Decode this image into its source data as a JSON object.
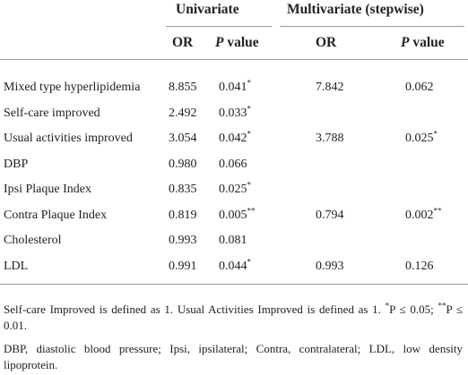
{
  "table": {
    "groups": [
      "Univariate",
      "Multivariate (stepwise)"
    ],
    "columns": [
      {
        "text": "OR"
      },
      {
        "italic": "P",
        "text": " value"
      },
      {
        "text": "OR"
      },
      {
        "italic": "P",
        "text": " value"
      }
    ],
    "rows": [
      [
        "Mixed type hyperlipidemia",
        "8.855",
        {
          "text": "0.041",
          "sup": "*"
        },
        "7.842",
        "0.062"
      ],
      [
        "Self-care improved",
        "2.492",
        {
          "text": "0.033",
          "sup": "*"
        },
        null,
        null
      ],
      [
        "Usual activities improved",
        "3.054",
        {
          "text": "0.042",
          "sup": "*"
        },
        "3.788",
        {
          "text": "0.025",
          "sup": "*"
        }
      ],
      [
        "DBP",
        "0.980",
        "0.066",
        null,
        null
      ],
      [
        "Ipsi Plaque Index",
        "0.835",
        {
          "text": "0.025",
          "sup": "*"
        },
        null,
        null
      ],
      [
        "Contra Plaque Index",
        "0.819",
        {
          "text": "0.005",
          "sup": "**"
        },
        "0.794",
        {
          "text": "0.002",
          "sup": "**"
        }
      ],
      [
        "Cholesterol",
        "0.993",
        "0.081",
        null,
        null
      ],
      [
        "LDL",
        "0.991",
        {
          "text": "0.044",
          "sup": "*"
        },
        "0.993",
        "0.126"
      ]
    ]
  },
  "footnotes": {
    "definition": "Self-care Improved is defined as 1. Usual Activities Improved is defined as 1.",
    "sig1_sup": "*",
    "sig1": "P ≤ 0.05;",
    "sig2_sup": "**",
    "sig2": "P ≤ 0.01.",
    "abbreviations": "DBP, diastolic blood pressure; Ipsi, ipsilateral; Contra, contralateral; LDL, low density lipoprotein."
  }
}
